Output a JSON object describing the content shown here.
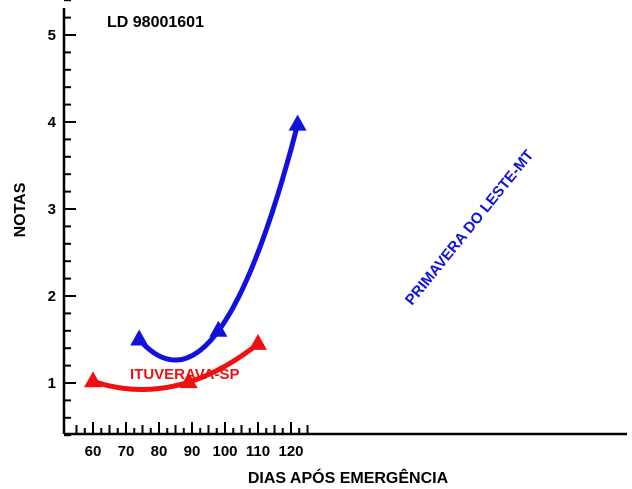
{
  "chart_data": {
    "type": "line",
    "title": "LD 98001601",
    "xlabel": "DIAS APÓS EMERGÊNCIA",
    "ylabel": "NOTAS",
    "xlim": [
      55,
      127
    ],
    "ylim": [
      0.4,
      5.4
    ],
    "x_ticks": [
      60,
      70,
      80,
      90,
      100,
      110,
      120
    ],
    "y_ticks": [
      1,
      2,
      3,
      4,
      5
    ],
    "grid": false,
    "series": [
      {
        "name": "PRIMAVERA DO LESTE-MT",
        "color": "#1111dd",
        "x": [
          74,
          98,
          122
        ],
        "y": [
          1.5,
          1.6,
          3.97
        ]
      },
      {
        "name": "ITUVERAVA-SP",
        "color": "#ee1111",
        "x": [
          60,
          89,
          110
        ],
        "y": [
          1.02,
          1.01,
          1.45
        ]
      }
    ]
  }
}
